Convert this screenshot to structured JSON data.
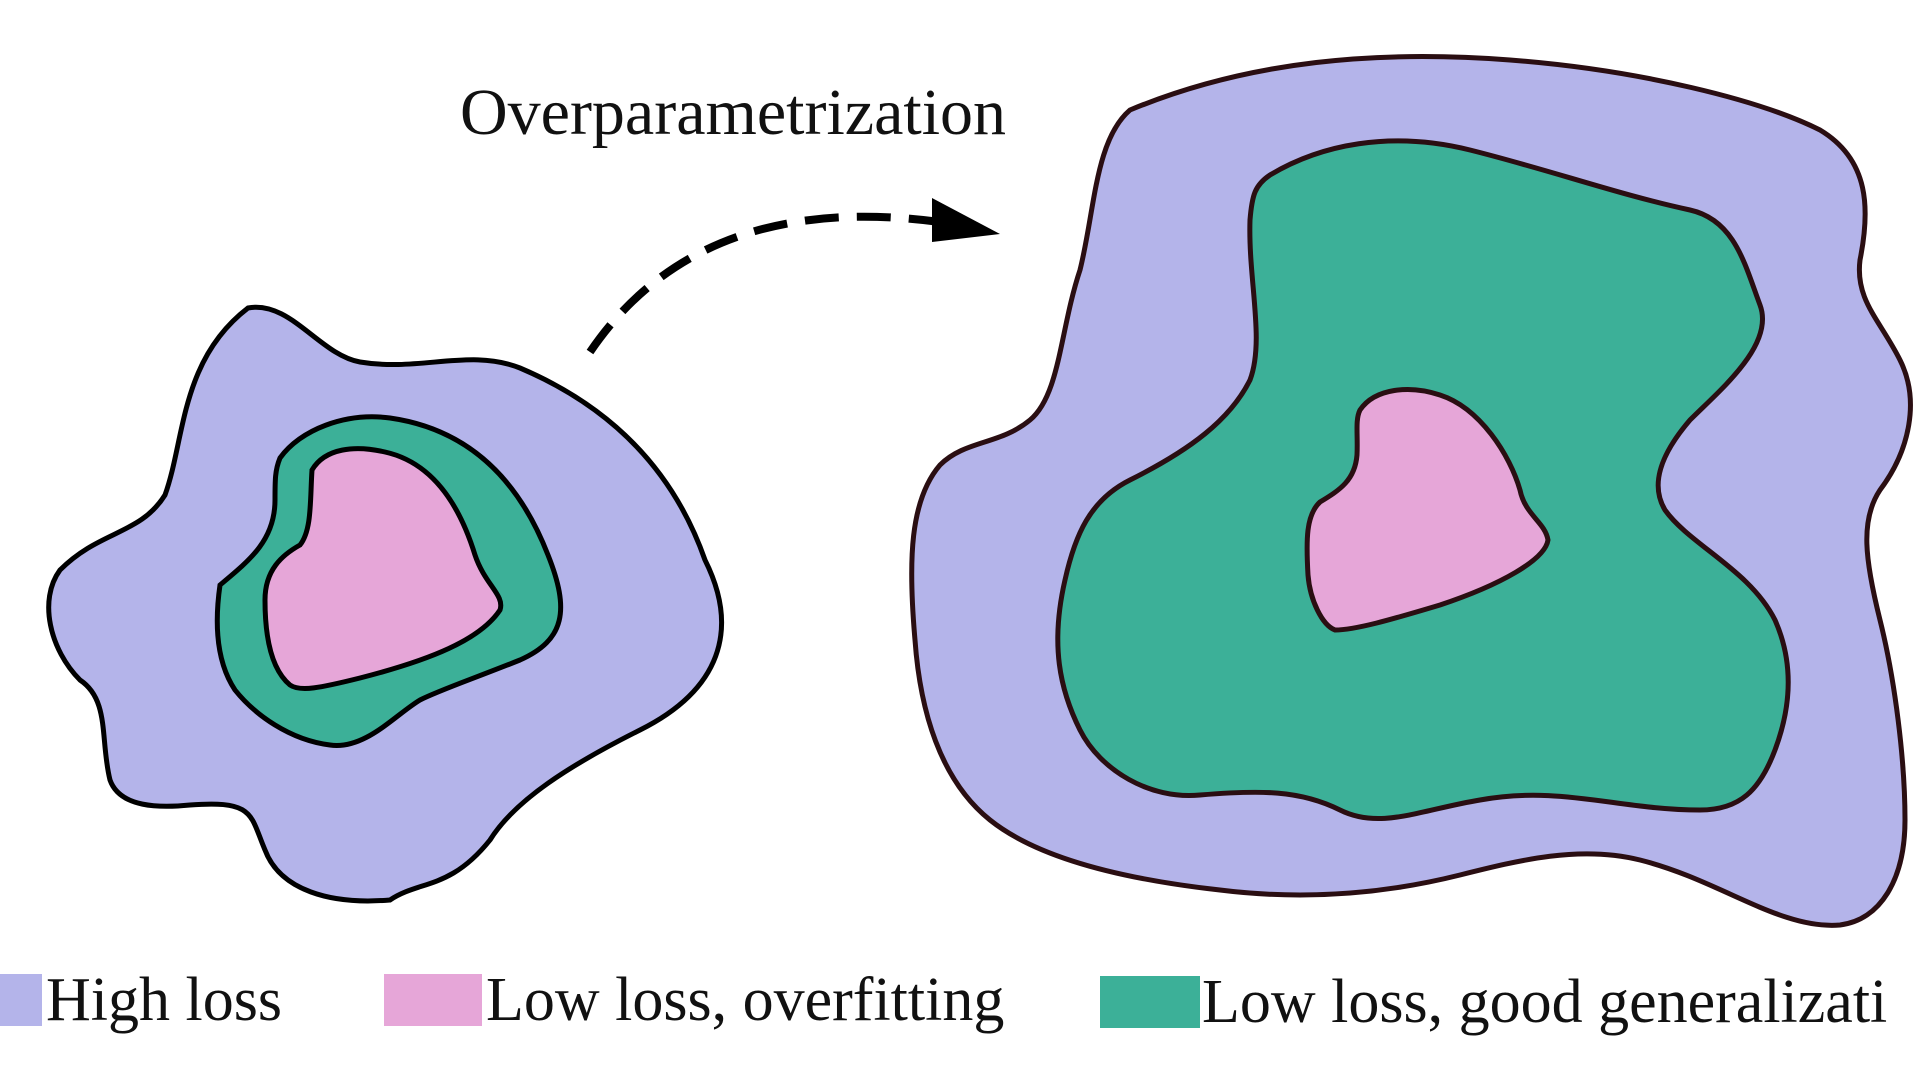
{
  "title": "Overparametrization",
  "colors": {
    "high_loss": "#b4b4ea",
    "low_loss_overfitting": "#e6a6d8",
    "low_loss_good_generalization": "#3cb098",
    "outline": "#000000",
    "outline_large": "#2a0e12",
    "arrow": "#000000"
  },
  "legend": {
    "items": [
      {
        "label": "High loss"
      },
      {
        "label": "Low loss, overfitting"
      },
      {
        "label": "Low loss, good generalizati"
      }
    ]
  }
}
